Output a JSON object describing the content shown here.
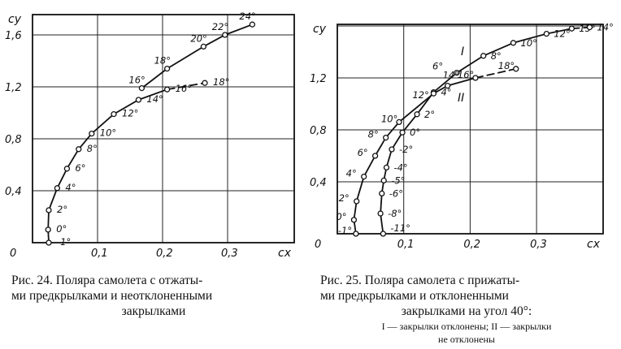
{
  "chart_data": [
    {
      "type": "line",
      "xlabel": "cx",
      "ylabel": "cy",
      "xlim": [
        0,
        0.4
      ],
      "ylim": [
        0,
        1.75
      ],
      "x_ticks": [
        "0",
        "0,1",
        "0,2",
        "0,3"
      ],
      "y_ticks": [
        "0,4",
        "0,8",
        "1,2",
        "1,6"
      ],
      "grid": true,
      "series": [
        {
          "points": [
            {
              "cx": 0.025,
              "cy": 0.0,
              "label": "-1°"
            },
            {
              "cx": 0.024,
              "cy": 0.1,
              "label": "0°"
            },
            {
              "cx": 0.025,
              "cy": 0.25,
              "label": "2°"
            },
            {
              "cx": 0.038,
              "cy": 0.42,
              "label": "4°"
            },
            {
              "cx": 0.053,
              "cy": 0.57,
              "label": "6°"
            },
            {
              "cx": 0.071,
              "cy": 0.72,
              "label": "8°"
            },
            {
              "cx": 0.091,
              "cy": 0.84,
              "label": "10°"
            },
            {
              "cx": 0.125,
              "cy": 0.99,
              "label": "12°"
            },
            {
              "cx": 0.163,
              "cy": 1.1,
              "label": "14°"
            },
            {
              "cx": 0.207,
              "cy": 1.18,
              "label": "16°"
            },
            {
              "cx": 0.265,
              "cy": 1.23,
              "label": "18°"
            }
          ]
        },
        {
          "points": [
            {
              "cx": 0.168,
              "cy": 1.19,
              "label": "16°"
            },
            {
              "cx": 0.207,
              "cy": 1.34,
              "label": "18°"
            },
            {
              "cx": 0.263,
              "cy": 1.51,
              "label": "20°"
            },
            {
              "cx": 0.296,
              "cy": 1.6,
              "label": "22°"
            },
            {
              "cx": 0.338,
              "cy": 1.68,
              "label": "24°"
            }
          ]
        }
      ]
    },
    {
      "type": "line",
      "xlabel": "cx",
      "ylabel": "cy",
      "xlim": [
        0,
        0.4
      ],
      "ylim": [
        0,
        1.61
      ],
      "x_ticks": [
        "0",
        "0,1",
        "0,2",
        "0,3"
      ],
      "y_ticks": [
        "0,4",
        "0,8",
        "1,2"
      ],
      "grid": true,
      "series": [
        {
          "name": "I",
          "points": [
            {
              "cx": 0.069,
              "cy": 0.0,
              "label": "-11°"
            },
            {
              "cx": 0.065,
              "cy": 0.156,
              "label": "-8°"
            },
            {
              "cx": 0.067,
              "cy": 0.31,
              "label": "-6°"
            },
            {
              "cx": 0.07,
              "cy": 0.41,
              "label": "-5°"
            },
            {
              "cx": 0.074,
              "cy": 0.51,
              "label": "-4°"
            },
            {
              "cx": 0.082,
              "cy": 0.65,
              "label": "-2°"
            },
            {
              "cx": 0.098,
              "cy": 0.78,
              "label": "0°"
            },
            {
              "cx": 0.12,
              "cy": 0.92,
              "label": "2°"
            },
            {
              "cx": 0.145,
              "cy": 1.09,
              "label": "4°"
            },
            {
              "cx": 0.18,
              "cy": 1.24,
              "label": "6°"
            },
            {
              "cx": 0.22,
              "cy": 1.37,
              "label": "8°"
            },
            {
              "cx": 0.265,
              "cy": 1.47,
              "label": "10°"
            },
            {
              "cx": 0.315,
              "cy": 1.54,
              "label": "12°"
            },
            {
              "cx": 0.353,
              "cy": 1.58,
              "label": "13°"
            },
            {
              "cx": 0.38,
              "cy": 1.59,
              "label": "14°"
            }
          ]
        },
        {
          "name": "II",
          "points": [
            {
              "cx": 0.028,
              "cy": 0.0,
              "label": "-1°"
            },
            {
              "cx": 0.025,
              "cy": 0.107,
              "label": "0°"
            },
            {
              "cx": 0.029,
              "cy": 0.25,
              "label": "2°"
            },
            {
              "cx": 0.04,
              "cy": 0.44,
              "label": "4°"
            },
            {
              "cx": 0.057,
              "cy": 0.6,
              "label": "6°"
            },
            {
              "cx": 0.073,
              "cy": 0.74,
              "label": "8°"
            },
            {
              "cx": 0.093,
              "cy": 0.86,
              "label": "10°"
            },
            {
              "cx": 0.145,
              "cy": 1.08,
              "label": "12°"
            },
            {
              "cx": 0.166,
              "cy": 1.14,
              "label": "14°"
            },
            {
              "cx": 0.208,
              "cy": 1.2,
              "label": "16°"
            },
            {
              "cx": 0.269,
              "cy": 1.27,
              "label": "18°"
            }
          ]
        }
      ]
    }
  ],
  "captions": {
    "fig24": [
      "Рис. 24. Поляра самолета с отжаты-",
      "ми предкрылками и неотклоненными",
      "закрылками"
    ],
    "fig25": [
      "Рис. 25. Поляра самолета с прижаты-",
      "ми предкрылками  и отклоненными",
      "закрылками на угол 40°:"
    ],
    "fig25_legend": [
      "I — закрылки отклонены; II — закрылки",
      "не отклонены"
    ]
  }
}
